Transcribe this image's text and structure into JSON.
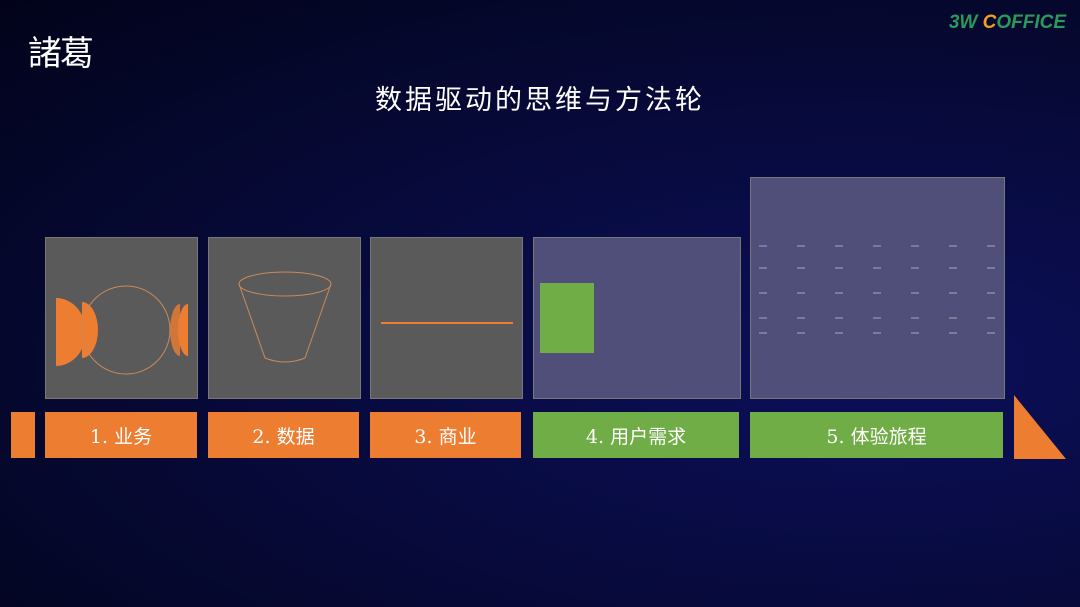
{
  "header": {
    "logo": "諸葛",
    "brand_prefix": "3W ",
    "brand_c": "C",
    "brand_suffix": "OFFICE",
    "title": "数据驱动的思维与方法轮"
  },
  "colors": {
    "orange": "#ed7d31",
    "green": "#70ad47"
  },
  "steps": [
    {
      "label": "1. 业务"
    },
    {
      "label": "2. 数据"
    },
    {
      "label": "3. 商业"
    },
    {
      "label": "4. 用户需求"
    },
    {
      "label": "5. 体验旅程"
    }
  ]
}
